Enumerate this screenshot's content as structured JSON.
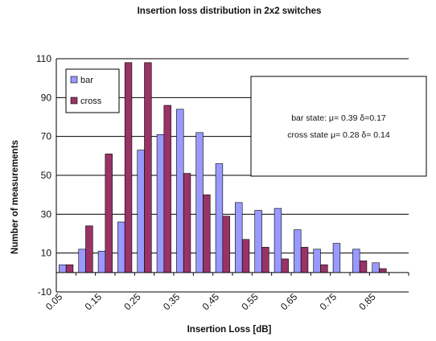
{
  "chart_data": {
    "type": "bar",
    "title": "Insertion loss distribution in 2x2 switches",
    "xlabel": "Insertion Loss [dB]",
    "ylabel": "Number of measurements",
    "ylim": [
      -10,
      110
    ],
    "yticks": [
      -10,
      10,
      30,
      50,
      70,
      90,
      110
    ],
    "grid": true,
    "legend_position": "top-left",
    "x_tick_labels": [
      "0.05",
      "0.15",
      "0.25",
      "0.35",
      "0.45",
      "0.55",
      "0.65",
      "0.75",
      "0.85"
    ],
    "categories": [
      "0.05",
      "0.1",
      "0.15",
      "0.2",
      "0.25",
      "0.3",
      "0.35",
      "0.4",
      "0.45",
      "0.5",
      "0.55",
      "0.6",
      "0.65",
      "0.7",
      "0.75",
      "0.8",
      "0.85",
      "0.9"
    ],
    "series": [
      {
        "name": "bar",
        "color": "#9999ff",
        "values": [
          4,
          12,
          11,
          26,
          63,
          71,
          84,
          72,
          56,
          36,
          32,
          33,
          22,
          12,
          15,
          12,
          5,
          0
        ]
      },
      {
        "name": "cross",
        "color": "#993366",
        "values": [
          4,
          24,
          61,
          108,
          108,
          86,
          51,
          40,
          29,
          17,
          13,
          7,
          13,
          4,
          0,
          6,
          2,
          0
        ]
      }
    ],
    "annotation": {
      "line1": "bar state: μ= 0.39 δ=0.17",
      "line2": "cross state μ= 0.28 δ= 0.14"
    }
  }
}
